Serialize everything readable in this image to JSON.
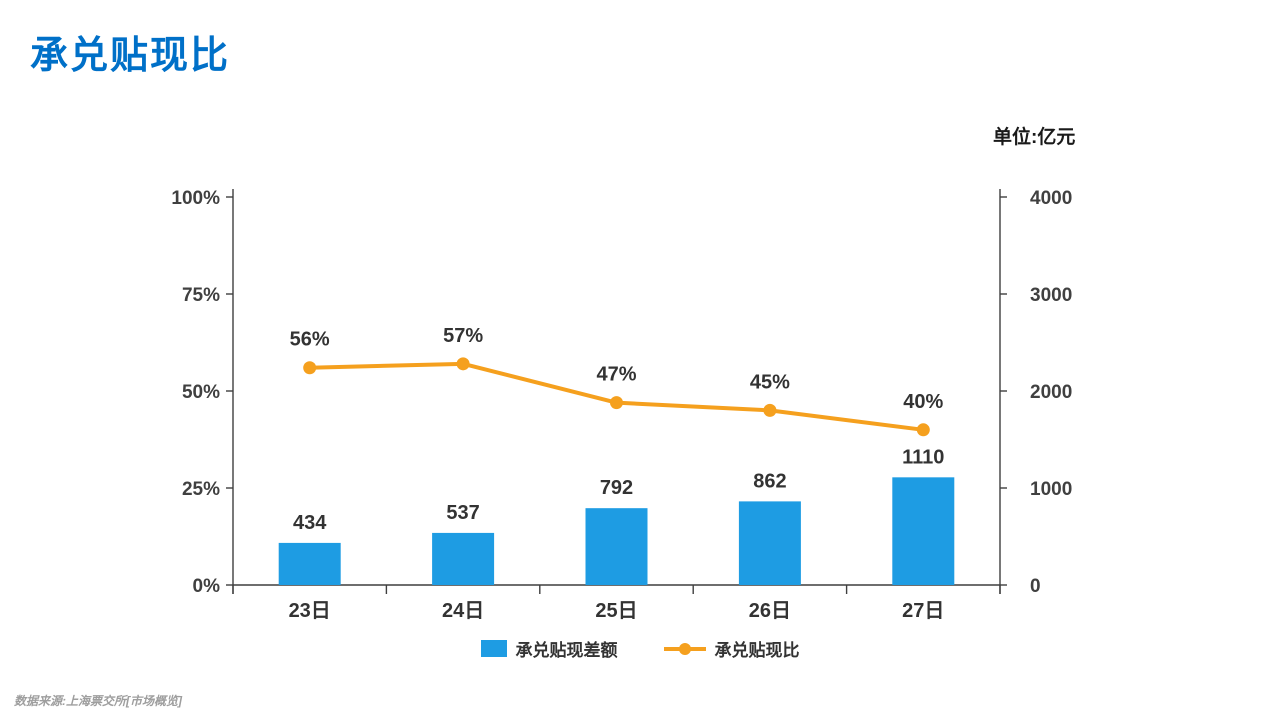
{
  "page": {
    "title": "承兑贴现比",
    "unit_label": "单位:亿元",
    "source_note": "数据来源:上海票交所[市场概览]"
  },
  "colors": {
    "title": "#0070C8",
    "bar": "#1E9CE3",
    "line": "#F5A01E",
    "axis": "#3F3F3F"
  },
  "chart_data": {
    "type": "combo",
    "title": "承兑贴现比",
    "categories": [
      "23日",
      "24日",
      "25日",
      "26日",
      "27日"
    ],
    "series": [
      {
        "name": "承兑贴现差额",
        "type": "bar",
        "axis": "right",
        "values": [
          434,
          537,
          792,
          862,
          1110
        ]
      },
      {
        "name": "承兑贴现比",
        "type": "line",
        "axis": "left",
        "values": [
          56,
          57,
          47,
          45,
          40
        ],
        "labels": [
          "56%",
          "57%",
          "47%",
          "45%",
          "40%"
        ]
      }
    ],
    "left_axis": {
      "ticks": [
        "0%",
        "25%",
        "50%",
        "75%",
        "100%"
      ],
      "min": 0,
      "max": 100
    },
    "right_axis": {
      "ticks": [
        "0",
        "1000",
        "2000",
        "3000",
        "4000"
      ],
      "min": 0,
      "max": 4000
    },
    "legend": [
      {
        "label": "承兑贴现差额",
        "marker": "bar"
      },
      {
        "label": "承兑贴现比",
        "marker": "line"
      }
    ],
    "legend_position": "bottom",
    "grid": false
  }
}
